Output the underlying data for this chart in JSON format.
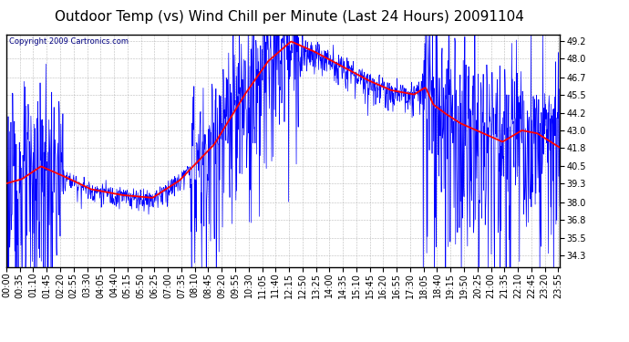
{
  "title": "Outdoor Temp (vs) Wind Chill per Minute (Last 24 Hours) 20091104",
  "copyright": "Copyright 2009 Cartronics.com",
  "yticks": [
    34.3,
    35.5,
    36.8,
    38.0,
    39.3,
    40.5,
    41.8,
    43.0,
    44.2,
    45.5,
    46.7,
    48.0,
    49.2
  ],
  "ylim": [
    33.5,
    49.7
  ],
  "bg_color": "#ffffff",
  "grid_color": "#aaaaaa",
  "line1_color": "#0000ff",
  "line2_color": "#ff0000",
  "title_fontsize": 11,
  "copyright_fontsize": 6,
  "tick_fontsize": 7,
  "xtick_step_minutes": 35
}
